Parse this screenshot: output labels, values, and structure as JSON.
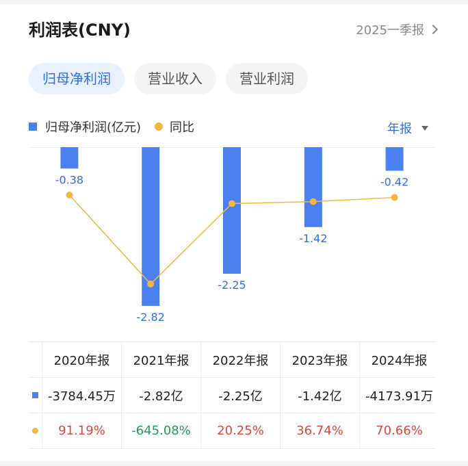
{
  "header": {
    "title": "利润表(CNY)",
    "period": "2025一季报"
  },
  "tabs": [
    {
      "label": "归母净利润",
      "active": true
    },
    {
      "label": "营业收入",
      "active": false
    },
    {
      "label": "营业利润",
      "active": false
    }
  ],
  "legend": {
    "bar_label": "归母净利润(亿元)",
    "line_label": "同比",
    "frequency": "年报"
  },
  "colors": {
    "bar": "#4a80f0",
    "line": "#f5b640",
    "accent": "#2f6fe8",
    "positive": "#e0443a",
    "negative": "#1f9d55"
  },
  "chart_data": {
    "type": "bar+line",
    "categories": [
      "2020年报",
      "2021年报",
      "2022年报",
      "2023年报",
      "2024年报"
    ],
    "series": [
      {
        "name": "归母净利润(亿元)",
        "type": "bar",
        "values": [
          -0.38,
          -2.82,
          -2.25,
          -1.42,
          -0.42
        ],
        "labels": [
          "-0.38",
          "-2.82",
          "-2.25",
          "-1.42",
          "-0.42"
        ]
      },
      {
        "name": "同比",
        "type": "line",
        "values": [
          91.19,
          -645.08,
          20.25,
          36.74,
          70.66
        ]
      }
    ]
  },
  "table": {
    "headers": [
      "2020年报",
      "2021年报",
      "2022年报",
      "2023年报",
      "2024年报"
    ],
    "profit": [
      "-3784.45万",
      "-2.82亿",
      "-2.25亿",
      "-1.42亿",
      "-4173.91万"
    ],
    "yoy": [
      "91.19%",
      "-645.08%",
      "20.25%",
      "36.74%",
      "70.66%"
    ]
  }
}
